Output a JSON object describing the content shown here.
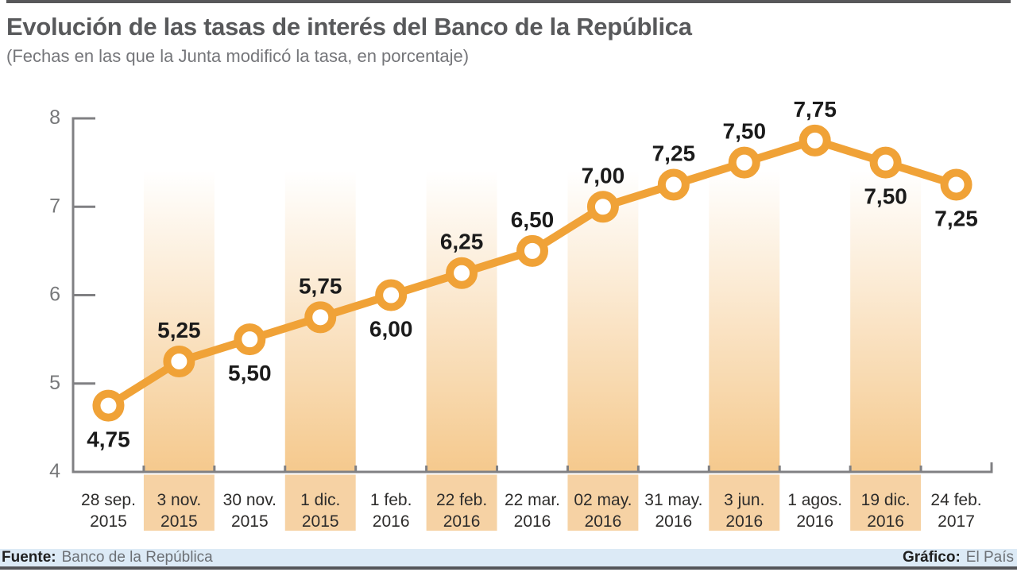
{
  "header": {
    "title": "Evolución de las tasas de interés del Banco de la República",
    "subtitle": "(Fechas en las que la Junta modificó la tasa, en porcentaje)"
  },
  "footer": {
    "source_label": "Fuente:",
    "source": "Banco de la República",
    "credit_label": "Gráfico:",
    "credit": "El País"
  },
  "colors": {
    "line": "#f0a237",
    "marker_ring": "#f0a237",
    "marker_fill": "#ffffff",
    "stripe_bottom": "#f5c98d",
    "stripe_label_band": "#f6d2a4",
    "axis": "#808083",
    "value_label": "#1b1b1b",
    "date_label": "#2d2c2b",
    "ytick_label": "#77787a"
  },
  "chart_data": {
    "type": "line",
    "title": "Evolución de las tasas de interés del Banco de la República",
    "subtitle": "(Fechas en las que la Junta modificó la tasa, en porcentaje)",
    "ylabel": "",
    "xlabel": "",
    "ylim": [
      4,
      8
    ],
    "y_ticks": [
      "4",
      "5",
      "6",
      "7",
      "8"
    ],
    "grid": "alternating vertical shaded stripes, no gridlines",
    "legend": "none",
    "points": [
      {
        "date_line1": "28 sep.",
        "date_line2": "2015",
        "value": 4.75,
        "label": "4,75",
        "label_position": "below",
        "shaded": false
      },
      {
        "date_line1": "3 nov.",
        "date_line2": "2015",
        "value": 5.25,
        "label": "5,25",
        "label_position": "above",
        "shaded": true
      },
      {
        "date_line1": "30 nov.",
        "date_line2": "2015",
        "value": 5.5,
        "label": "5,50",
        "label_position": "below",
        "shaded": false
      },
      {
        "date_line1": "1 dic.",
        "date_line2": "2015",
        "value": 5.75,
        "label": "5,75",
        "label_position": "above",
        "shaded": true
      },
      {
        "date_line1": "1 feb.",
        "date_line2": "2016",
        "value": 6.0,
        "label": "6,00",
        "label_position": "below",
        "shaded": false
      },
      {
        "date_line1": "22 feb.",
        "date_line2": "2016",
        "value": 6.25,
        "label": "6,25",
        "label_position": "above",
        "shaded": true
      },
      {
        "date_line1": "22 mar.",
        "date_line2": "2016",
        "value": 6.5,
        "label": "6,50",
        "label_position": "above",
        "shaded": false
      },
      {
        "date_line1": "02 may.",
        "date_line2": "2016",
        "value": 7.0,
        "label": "7,00",
        "label_position": "above",
        "shaded": true
      },
      {
        "date_line1": "31 may.",
        "date_line2": "2016",
        "value": 7.25,
        "label": "7,25",
        "label_position": "above",
        "shaded": false
      },
      {
        "date_line1": "3 jun.",
        "date_line2": "2016",
        "value": 7.5,
        "label": "7,50",
        "label_position": "above",
        "shaded": true
      },
      {
        "date_line1": "1 agos.",
        "date_line2": "2016",
        "value": 7.75,
        "label": "7,75",
        "label_position": "above",
        "shaded": false
      },
      {
        "date_line1": "19 dic.",
        "date_line2": "2016",
        "value": 7.5,
        "label": "7,50",
        "label_position": "below",
        "shaded": true
      },
      {
        "date_line1": "24 feb.",
        "date_line2": "2017",
        "value": 7.25,
        "label": "7,25",
        "label_position": "below",
        "shaded": false
      }
    ]
  }
}
